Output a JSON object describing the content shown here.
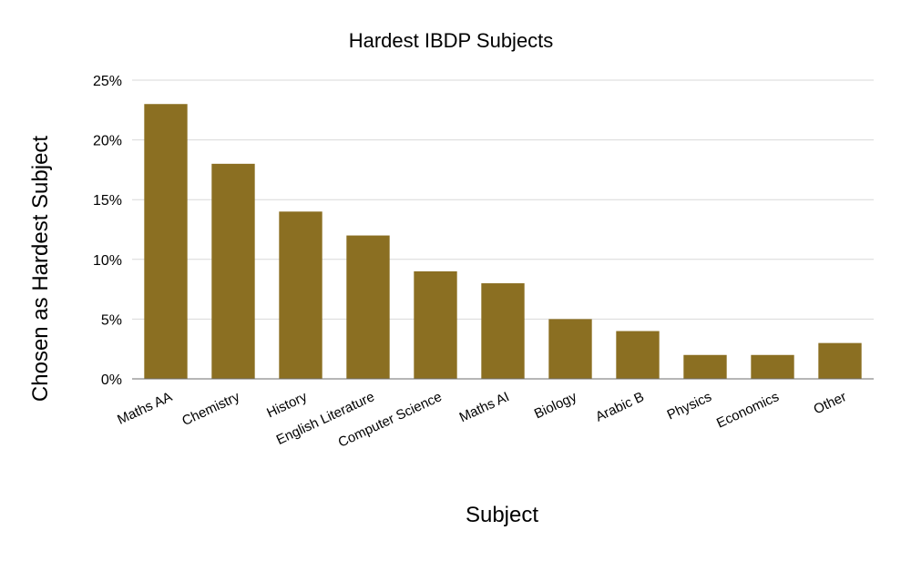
{
  "chart_data": {
    "type": "bar",
    "title": "Hardest IBDP Subjects",
    "xlabel": "Subject",
    "ylabel": "Chosen as Hardest Subject",
    "categories": [
      "Maths AA",
      "Chemistry",
      "History",
      "English Literature",
      "Computer Science",
      "Maths AI",
      "Biology",
      "Arabic B",
      "Physics",
      "Economics",
      "Other"
    ],
    "values": [
      23,
      18,
      14,
      12,
      9,
      8,
      5,
      4,
      2,
      2,
      3
    ],
    "value_unit": "%",
    "ylim": [
      0,
      25
    ],
    "yticks": [
      0,
      5,
      10,
      15,
      20,
      25
    ],
    "ytick_labels": [
      "0%",
      "5%",
      "10%",
      "15%",
      "20%",
      "25%"
    ],
    "grid": true,
    "legend": "none",
    "colors": {
      "bar": "#8b6f22",
      "grid": "#d9d9d9",
      "axis": "#6e6e6e"
    }
  }
}
